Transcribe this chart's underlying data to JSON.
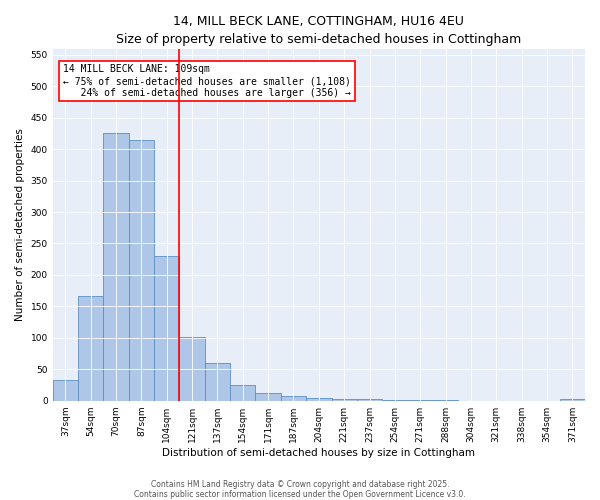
{
  "title": "14, MILL BECK LANE, COTTINGHAM, HU16 4EU",
  "subtitle": "Size of property relative to semi-detached houses in Cottingham",
  "xlabel": "Distribution of semi-detached houses by size in Cottingham",
  "ylabel": "Number of semi-detached properties",
  "bar_labels": [
    "37sqm",
    "54sqm",
    "70sqm",
    "87sqm",
    "104sqm",
    "121sqm",
    "137sqm",
    "154sqm",
    "171sqm",
    "187sqm",
    "204sqm",
    "221sqm",
    "237sqm",
    "254sqm",
    "271sqm",
    "288sqm",
    "304sqm",
    "321sqm",
    "338sqm",
    "354sqm",
    "371sqm"
  ],
  "bar_values": [
    33,
    167,
    425,
    415,
    230,
    102,
    60,
    25,
    13,
    8,
    5,
    2,
    2,
    1,
    1,
    1,
    0,
    0,
    0,
    0,
    3
  ],
  "bar_color": "#aec6e8",
  "bar_edgecolor": "#5a8fc2",
  "property_line_x": 4.5,
  "vline_color": "red",
  "annotation_line1": "14 MILL BECK LANE: 109sqm",
  "annotation_line2": "← 75% of semi-detached houses are smaller (1,108)",
  "annotation_line3": "   24% of semi-detached houses are larger (356) →",
  "annotation_box_color": "white",
  "annotation_box_edgecolor": "red",
  "ylim": [
    0,
    560
  ],
  "yticks": [
    0,
    50,
    100,
    150,
    200,
    250,
    300,
    350,
    400,
    450,
    500,
    550
  ],
  "bg_color": "#e8eef7",
  "footer_line1": "Contains HM Land Registry data © Crown copyright and database right 2025.",
  "footer_line2": "Contains public sector information licensed under the Open Government Licence v3.0.",
  "title_fontsize": 9,
  "subtitle_fontsize": 8,
  "axis_label_fontsize": 7.5,
  "tick_fontsize": 6.5,
  "annotation_fontsize": 7,
  "footer_fontsize": 5.5
}
